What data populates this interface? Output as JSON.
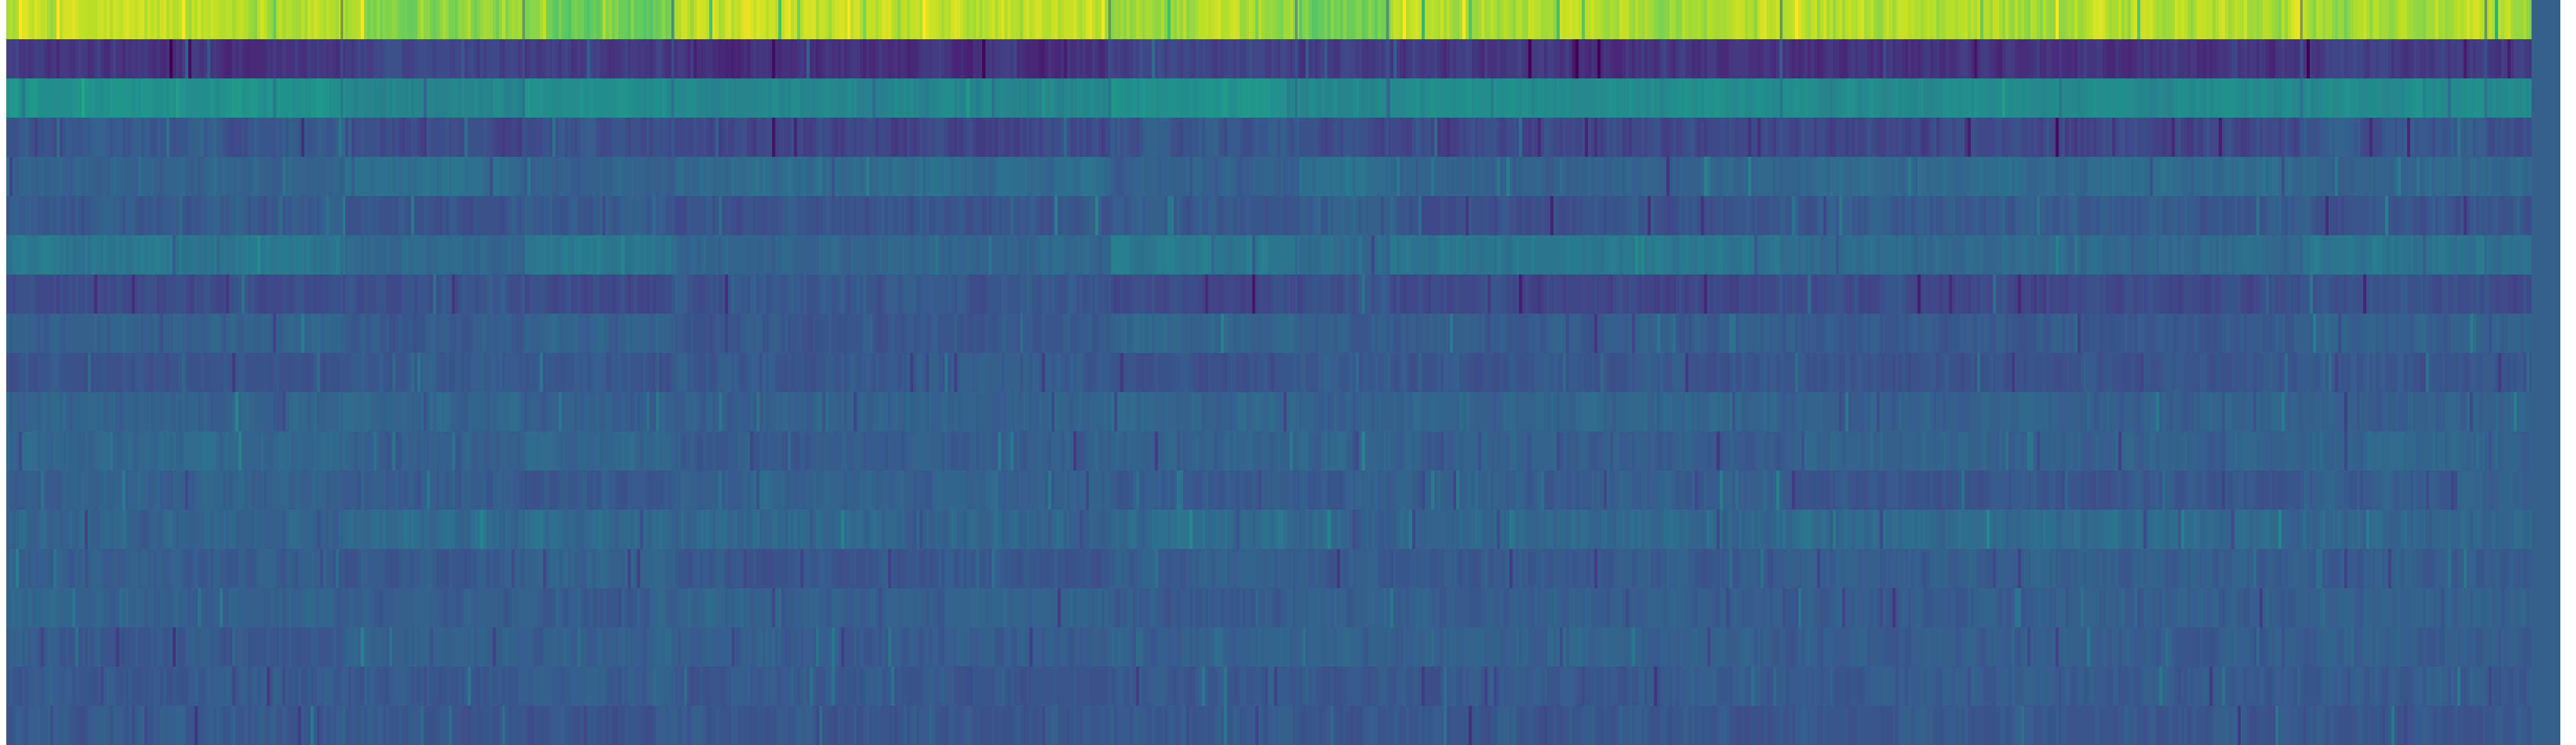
{
  "chart_data": {
    "type": "heatmap",
    "title": "",
    "xlabel": "",
    "ylabel": "",
    "colormap": "viridis",
    "colorscale_range": [
      0,
      1
    ],
    "grid": false,
    "legend": "none",
    "n_rows": 19,
    "n_columns": 4840,
    "row_mean_intensity": [
      0.86,
      0.18,
      0.47,
      0.25,
      0.33,
      0.27,
      0.37,
      0.24,
      0.3,
      0.27,
      0.31,
      0.31,
      0.29,
      0.33,
      0.29,
      0.3,
      0.3,
      0.28,
      0.27
    ],
    "row_variability": [
      0.1,
      0.07,
      0.05,
      0.07,
      0.05,
      0.06,
      0.05,
      0.06,
      0.05,
      0.05,
      0.05,
      0.05,
      0.05,
      0.06,
      0.05,
      0.05,
      0.05,
      0.05,
      0.05
    ],
    "segment_boundaries_fraction": [
      0.133,
      0.205,
      0.264,
      0.437,
      0.511,
      0.547,
      0.703,
      0.909,
      0.982
    ],
    "segment_row_offsets": [
      [
        0.04,
        -0.02,
        0.03,
        0.02,
        -0.01,
        0.01,
        0.02,
        0.0,
        0.01,
        -0.01,
        0.0,
        0.02,
        0.01,
        -0.01,
        0.0,
        0.01,
        -0.02,
        0.0,
        0.01
      ],
      [
        -0.03,
        0.02,
        -0.02,
        -0.03,
        0.03,
        0.0,
        -0.04,
        0.02,
        -0.02,
        0.01,
        0.02,
        -0.01,
        0.0,
        0.01,
        -0.01,
        0.0,
        0.01,
        -0.01,
        0.0
      ],
      [
        -0.06,
        0.0,
        0.02,
        0.0,
        -0.02,
        0.02,
        0.03,
        -0.02,
        0.01,
        0.0,
        -0.01,
        0.02,
        -0.02,
        0.01,
        0.02,
        -0.01,
        0.0,
        0.02,
        -0.01
      ],
      [
        0.03,
        -0.04,
        -0.02,
        -0.04,
        0.02,
        -0.01,
        -0.05,
        0.03,
        -0.03,
        0.01,
        0.0,
        -0.02,
        0.02,
        0.0,
        -0.02,
        0.01,
        -0.01,
        -0.01,
        0.0
      ],
      [
        -0.01,
        0.03,
        0.03,
        0.03,
        -0.03,
        0.0,
        0.03,
        -0.01,
        0.02,
        -0.02,
        0.01,
        0.0,
        -0.01,
        0.02,
        0.01,
        -0.02,
        0.01,
        0.0,
        0.01
      ],
      [
        -0.07,
        0.01,
        -0.01,
        -0.02,
        0.04,
        0.03,
        -0.02,
        0.02,
        0.0,
        0.02,
        -0.01,
        0.01,
        0.0,
        -0.01,
        0.0,
        0.01,
        0.0,
        -0.01,
        -0.01
      ],
      [
        0.03,
        -0.02,
        0.01,
        -0.03,
        -0.02,
        -0.01,
        0.02,
        -0.02,
        -0.01,
        0.0,
        0.01,
        -0.01,
        0.01,
        0.0,
        -0.01,
        0.0,
        0.01,
        0.0,
        0.0
      ],
      [
        0.02,
        -0.03,
        0.0,
        -0.04,
        0.01,
        0.01,
        -0.03,
        -0.01,
        -0.02,
        -0.01,
        0.0,
        0.0,
        -0.02,
        0.01,
        0.01,
        -0.01,
        -0.01,
        0.0,
        0.0
      ],
      [
        0.01,
        0.0,
        0.01,
        0.01,
        -0.01,
        0.0,
        0.02,
        0.01,
        0.01,
        0.0,
        -0.01,
        0.01,
        0.01,
        0.0,
        0.0,
        0.01,
        0.0,
        0.01,
        0.0
      ],
      [
        0.0,
        0.01,
        0.0,
        0.0,
        0.0,
        0.0,
        0.0,
        0.0,
        0.0,
        0.0,
        0.0,
        0.0,
        0.0,
        0.0,
        0.0,
        0.0,
        0.0,
        0.0,
        0.0
      ]
    ],
    "right_edge_column_value": 0.3
  }
}
